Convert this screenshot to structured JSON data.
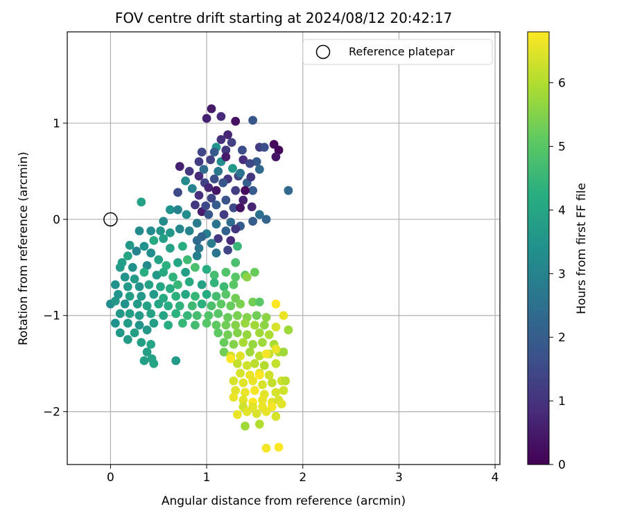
{
  "chart_data": {
    "type": "scatter",
    "title": "FOV centre drift starting at 2024/08/12 20:42:17",
    "xlabel": "Angular distance from reference (arcmin)",
    "ylabel": "Rotation from reference (arcmin)",
    "xlim": [
      -0.45,
      4.05
    ],
    "ylim": [
      -2.55,
      1.95
    ],
    "xticks": [
      0,
      1,
      2,
      3,
      4
    ],
    "xtick_labels": [
      "0",
      "1",
      "2",
      "3",
      "4"
    ],
    "yticks": [
      1,
      0,
      -1,
      -2
    ],
    "ytick_labels": [
      "1",
      "0",
      "−1",
      "−2"
    ],
    "grid": true,
    "legend": {
      "position": "top-right",
      "entries": [
        "Reference platepar"
      ]
    },
    "reference_point": {
      "label": "Reference platepar",
      "x": 0,
      "y": 0
    },
    "colorbar": {
      "label": "Hours from first FF file",
      "range": [
        0,
        6.8
      ],
      "ticks": [
        0,
        1,
        2,
        3,
        4,
        5,
        6
      ],
      "tick_labels": [
        "0",
        "1",
        "2",
        "3",
        "4",
        "5",
        "6"
      ],
      "colormap": "viridis"
    },
    "points": [
      [
        1.05,
        1.15,
        0.5
      ],
      [
        1.15,
        1.07,
        0.8
      ],
      [
        1.0,
        1.05,
        0.6
      ],
      [
        1.3,
        1.02,
        0.3
      ],
      [
        1.48,
        1.03,
        1.8
      ],
      [
        1.22,
        0.88,
        0.7
      ],
      [
        1.15,
        0.83,
        0.9
      ],
      [
        1.55,
        0.75,
        1.2
      ],
      [
        1.75,
        0.72,
        0.1
      ],
      [
        1.7,
        0.78,
        0.2
      ],
      [
        1.72,
        0.65,
        0.4
      ],
      [
        1.1,
        0.75,
        3.5
      ],
      [
        1.26,
        0.8,
        1.3
      ],
      [
        1.37,
        0.72,
        1.6
      ],
      [
        1.2,
        0.72,
        1.1
      ],
      [
        0.95,
        0.7,
        1.4
      ],
      [
        1.04,
        0.62,
        1.3
      ],
      [
        0.92,
        0.6,
        1.2
      ],
      [
        1.15,
        0.6,
        3.3
      ],
      [
        1.38,
        0.62,
        0.9
      ],
      [
        1.52,
        0.6,
        1.9
      ],
      [
        1.45,
        0.58,
        1.5
      ],
      [
        0.72,
        0.55,
        0.6
      ],
      [
        0.82,
        0.5,
        1.1
      ],
      [
        1.12,
        0.5,
        2.7
      ],
      [
        1.27,
        0.53,
        3.6
      ],
      [
        1.33,
        0.45,
        1.4
      ],
      [
        1.55,
        0.52,
        2.3
      ],
      [
        0.92,
        0.45,
        0.8
      ],
      [
        1.08,
        0.42,
        1.6
      ],
      [
        1.22,
        0.42,
        1.0
      ],
      [
        1.42,
        0.38,
        2.1
      ],
      [
        0.78,
        0.4,
        3.2
      ],
      [
        0.98,
        0.38,
        1.3
      ],
      [
        1.17,
        0.38,
        1.8
      ],
      [
        0.85,
        0.32,
        3.0
      ],
      [
        1.02,
        0.33,
        0.7
      ],
      [
        1.3,
        0.3,
        1.2
      ],
      [
        1.48,
        0.3,
        1.9
      ],
      [
        1.85,
        0.3,
        2.3
      ],
      [
        0.7,
        0.28,
        1.5
      ],
      [
        0.92,
        0.25,
        0.9
      ],
      [
        1.05,
        0.22,
        1.4
      ],
      [
        1.2,
        0.2,
        1.7
      ],
      [
        1.38,
        0.2,
        0.6
      ],
      [
        0.88,
        0.15,
        1.1
      ],
      [
        1.1,
        0.15,
        2.0
      ],
      [
        1.28,
        0.12,
        1.5
      ],
      [
        0.95,
        0.08,
        0.5
      ],
      [
        1.35,
        0.12,
        0.3
      ],
      [
        0.62,
        0.1,
        3.4
      ],
      [
        0.7,
        0.1,
        3.0
      ],
      [
        1.18,
        0.05,
        1.2
      ],
      [
        1.02,
        0.05,
        1.8
      ],
      [
        1.55,
        0.05,
        2.5
      ],
      [
        1.62,
        0.0,
        2.2
      ],
      [
        0.79,
        0.05,
        3.3
      ],
      [
        1.48,
        -0.02,
        2.0
      ],
      [
        1.25,
        -0.03,
        2.4
      ],
      [
        1.1,
        -0.05,
        2.6
      ],
      [
        0.55,
        -0.02,
        3.2
      ],
      [
        0.9,
        -0.04,
        2.8
      ],
      [
        1.35,
        -0.07,
        1.9
      ],
      [
        0.72,
        -0.1,
        3.1
      ],
      [
        1.2,
        -0.12,
        2.1
      ],
      [
        1.0,
        -0.15,
        2.9
      ],
      [
        0.62,
        -0.14,
        3.6
      ],
      [
        0.82,
        -0.12,
        3.0
      ],
      [
        0.95,
        -0.18,
        2.2
      ],
      [
        1.12,
        -0.2,
        1.1
      ],
      [
        1.25,
        -0.22,
        0.8
      ],
      [
        0.32,
        0.18,
        3.9
      ],
      [
        0.42,
        -0.12,
        3.3
      ],
      [
        0.52,
        -0.12,
        3.5
      ],
      [
        0.3,
        -0.12,
        3.2
      ],
      [
        0.45,
        -0.22,
        4.1
      ],
      [
        0.55,
        -0.2,
        3.8
      ],
      [
        0.35,
        -0.28,
        3.4
      ],
      [
        0.2,
        -0.27,
        3.6
      ],
      [
        0.27,
        -0.33,
        3.0
      ],
      [
        0.62,
        -0.3,
        3.9
      ],
      [
        0.75,
        -0.28,
        4.2
      ],
      [
        0.92,
        -0.3,
        2.7
      ],
      [
        1.1,
        -0.35,
        2.6
      ],
      [
        1.22,
        -0.32,
        1.4
      ],
      [
        1.32,
        -0.28,
        4.5
      ],
      [
        0.42,
        -0.35,
        3.3
      ],
      [
        0.18,
        -0.38,
        4.0
      ],
      [
        0.12,
        -0.45,
        3.8
      ],
      [
        0.23,
        -0.5,
        3.4
      ],
      [
        0.38,
        -0.48,
        3.2
      ],
      [
        0.5,
        -0.42,
        3.9
      ],
      [
        0.58,
        -0.48,
        4.3
      ],
      [
        0.7,
        -0.45,
        4.0
      ],
      [
        0.8,
        -0.42,
        4.6
      ],
      [
        0.9,
        -0.38,
        2.9
      ],
      [
        0.1,
        -0.5,
        3.7
      ],
      [
        0.15,
        -0.6,
        3.5
      ],
      [
        0.25,
        -0.62,
        3.7
      ],
      [
        0.35,
        -0.55,
        4.2
      ],
      [
        0.48,
        -0.58,
        3.6
      ],
      [
        0.55,
        -0.55,
        4.1
      ],
      [
        0.65,
        -0.6,
        4.4
      ],
      [
        0.78,
        -0.55,
        3.8
      ],
      [
        0.88,
        -0.5,
        4.8
      ],
      [
        1.0,
        -0.52,
        4.2
      ],
      [
        1.08,
        -0.58,
        4.7
      ],
      [
        1.2,
        -0.55,
        4.9
      ],
      [
        1.3,
        -0.6,
        5.0
      ],
      [
        1.4,
        -0.58,
        5.1
      ],
      [
        1.5,
        -0.55,
        5.2
      ],
      [
        1.42,
        -0.6,
        5.6
      ],
      [
        0.05,
        -0.68,
        3.4
      ],
      [
        0.18,
        -0.7,
        3.7
      ],
      [
        0.3,
        -0.7,
        3.5
      ],
      [
        0.4,
        -0.68,
        3.9
      ],
      [
        0.52,
        -0.7,
        4.0
      ],
      [
        0.62,
        -0.72,
        4.2
      ],
      [
        0.7,
        -0.68,
        4.5
      ],
      [
        0.82,
        -0.65,
        4.1
      ],
      [
        0.95,
        -0.68,
        3.9
      ],
      [
        1.08,
        -0.66,
        4.4
      ],
      [
        1.18,
        -0.7,
        4.6
      ],
      [
        1.28,
        -0.68,
        5.0
      ],
      [
        0.08,
        -0.78,
        3.5
      ],
      [
        0.2,
        -0.8,
        3.8
      ],
      [
        0.32,
        -0.8,
        3.6
      ],
      [
        0.45,
        -0.78,
        3.7
      ],
      [
        0.55,
        -0.82,
        4.1
      ],
      [
        0.68,
        -0.8,
        4.3
      ],
      [
        0.78,
        -0.78,
        4.0
      ],
      [
        0.88,
        -0.8,
        4.5
      ],
      [
        1.0,
        -0.78,
        4.2
      ],
      [
        1.1,
        -0.8,
        4.7
      ],
      [
        1.2,
        -0.78,
        5.0
      ],
      [
        1.3,
        -0.82,
        5.3
      ],
      [
        0.0,
        -0.88,
        3.3
      ],
      [
        0.05,
        -0.85,
        3.6
      ],
      [
        0.15,
        -0.88,
        3.4
      ],
      [
        0.28,
        -0.88,
        3.7
      ],
      [
        0.38,
        -0.9,
        3.9
      ],
      [
        0.5,
        -0.88,
        4.0
      ],
      [
        0.6,
        -0.9,
        4.2
      ],
      [
        0.72,
        -0.9,
        4.4
      ],
      [
        0.85,
        -0.9,
        4.6
      ],
      [
        0.95,
        -0.88,
        4.3
      ],
      [
        1.05,
        -0.9,
        4.8
      ],
      [
        1.15,
        -0.88,
        5.1
      ],
      [
        1.25,
        -0.9,
        5.2
      ],
      [
        1.35,
        -0.88,
        5.4
      ],
      [
        1.48,
        -0.86,
        5.3
      ],
      [
        1.55,
        -0.86,
        5.0
      ],
      [
        1.72,
        -0.88,
        6.8
      ],
      [
        0.1,
        -0.98,
        3.6
      ],
      [
        0.2,
        -0.98,
        3.8
      ],
      [
        0.3,
        -1.0,
        3.7
      ],
      [
        0.42,
        -0.98,
        3.9
      ],
      [
        0.55,
        -1.0,
        4.0
      ],
      [
        0.68,
        -0.98,
        4.3
      ],
      [
        0.8,
        -1.0,
        4.5
      ],
      [
        0.9,
        -1.0,
        4.7
      ],
      [
        1.02,
        -1.0,
        4.9
      ],
      [
        1.12,
        -0.98,
        5.0
      ],
      [
        1.22,
        -1.02,
        5.2
      ],
      [
        1.32,
        -1.0,
        5.4
      ],
      [
        1.42,
        -1.02,
        5.5
      ],
      [
        1.52,
        -1.0,
        5.3
      ],
      [
        1.62,
        -1.02,
        5.6
      ],
      [
        1.8,
        -1.0,
        6.6
      ],
      [
        0.05,
        -1.08,
        3.4
      ],
      [
        0.18,
        -1.08,
        3.7
      ],
      [
        0.3,
        -1.1,
        3.5
      ],
      [
        0.45,
        -1.08,
        3.8
      ],
      [
        0.6,
        -1.1,
        4.2
      ],
      [
        0.75,
        -1.08,
        4.5
      ],
      [
        0.88,
        -1.1,
        4.7
      ],
      [
        1.0,
        -1.08,
        5.0
      ],
      [
        1.1,
        -1.1,
        5.1
      ],
      [
        1.2,
        -1.1,
        5.3
      ],
      [
        1.3,
        -1.1,
        5.5
      ],
      [
        1.4,
        -1.08,
        5.7
      ],
      [
        1.5,
        -1.1,
        5.8
      ],
      [
        1.6,
        -1.1,
        5.6
      ],
      [
        1.72,
        -1.12,
        6.4
      ],
      [
        0.1,
        -1.18,
        3.6
      ],
      [
        0.25,
        -1.18,
        3.8
      ],
      [
        0.38,
        -1.15,
        3.6
      ],
      [
        1.12,
        -1.18,
        5.1
      ],
      [
        1.22,
        -1.2,
        5.3
      ],
      [
        1.32,
        -1.18,
        5.5
      ],
      [
        1.42,
        -1.2,
        5.7
      ],
      [
        1.55,
        -1.18,
        5.8
      ],
      [
        1.65,
        -1.2,
        5.9
      ],
      [
        1.85,
        -1.15,
        5.8
      ],
      [
        0.18,
        -1.25,
        3.7
      ],
      [
        0.32,
        -1.28,
        3.8
      ],
      [
        0.42,
        -1.3,
        4.0
      ],
      [
        1.18,
        -1.28,
        5.2
      ],
      [
        1.28,
        -1.3,
        5.5
      ],
      [
        1.38,
        -1.28,
        5.9
      ],
      [
        1.48,
        -1.3,
        5.7
      ],
      [
        1.58,
        -1.28,
        5.8
      ],
      [
        1.7,
        -1.3,
        5.9
      ],
      [
        0.38,
        -1.38,
        3.8
      ],
      [
        0.43,
        -1.45,
        3.9
      ],
      [
        1.18,
        -1.38,
        5.3
      ],
      [
        1.25,
        -1.42,
        6.3
      ],
      [
        1.35,
        -1.42,
        6.5
      ],
      [
        1.45,
        -1.38,
        5.8
      ],
      [
        1.55,
        -1.42,
        6.1
      ],
      [
        1.65,
        -1.4,
        6.2
      ],
      [
        1.75,
        -1.38,
        6.0
      ],
      [
        1.8,
        -1.38,
        5.8
      ],
      [
        1.72,
        -1.35,
        6.6
      ],
      [
        1.62,
        -1.4,
        6.7
      ],
      [
        1.25,
        -1.45,
        6.8
      ],
      [
        0.35,
        -1.47,
        3.8
      ],
      [
        0.45,
        -1.5,
        4.0
      ],
      [
        0.68,
        -1.47,
        3.7
      ],
      [
        1.32,
        -1.5,
        6.2
      ],
      [
        1.42,
        -1.52,
        6.3
      ],
      [
        1.5,
        -1.5,
        6.1
      ],
      [
        1.6,
        -1.52,
        6.0
      ],
      [
        1.72,
        -1.5,
        6.2
      ],
      [
        1.35,
        -1.6,
        6.4
      ],
      [
        1.45,
        -1.62,
        6.6
      ],
      [
        1.55,
        -1.6,
        6.5
      ],
      [
        1.65,
        -1.62,
        6.3
      ],
      [
        1.55,
        -1.62,
        6.8
      ],
      [
        1.28,
        -1.68,
        6.4
      ],
      [
        1.38,
        -1.7,
        6.5
      ],
      [
        1.48,
        -1.68,
        6.6
      ],
      [
        1.58,
        -1.72,
        6.4
      ],
      [
        1.68,
        -1.7,
        6.2
      ],
      [
        1.78,
        -1.68,
        6.3
      ],
      [
        1.82,
        -1.68,
        6.1
      ],
      [
        1.3,
        -1.78,
        6.5
      ],
      [
        1.4,
        -1.8,
        6.6
      ],
      [
        1.5,
        -1.78,
        6.7
      ],
      [
        1.6,
        -1.82,
        6.5
      ],
      [
        1.72,
        -1.8,
        6.4
      ],
      [
        1.8,
        -1.78,
        6.3
      ],
      [
        1.28,
        -1.85,
        6.6
      ],
      [
        1.38,
        -1.88,
        6.5
      ],
      [
        1.48,
        -1.9,
        6.8
      ],
      [
        1.58,
        -1.88,
        6.6
      ],
      [
        1.68,
        -1.9,
        6.5
      ],
      [
        1.75,
        -1.88,
        6.4
      ],
      [
        1.38,
        -1.95,
        6.3
      ],
      [
        1.48,
        -1.95,
        6.5
      ],
      [
        1.58,
        -1.95,
        6.6
      ],
      [
        1.68,
        -1.95,
        6.7
      ],
      [
        1.78,
        -1.92,
        6.5
      ],
      [
        1.32,
        -2.03,
        6.6
      ],
      [
        1.42,
        -2.0,
        6.5
      ],
      [
        1.52,
        -2.02,
        6.4
      ],
      [
        1.62,
        -2.0,
        6.6
      ],
      [
        1.72,
        -2.05,
        6.4
      ],
      [
        1.4,
        -2.15,
        5.8
      ],
      [
        1.55,
        -2.13,
        6.0
      ],
      [
        1.62,
        -2.38,
        6.7
      ],
      [
        1.75,
        -2.37,
        6.8
      ],
      [
        1.3,
        -0.1,
        1.0
      ],
      [
        1.6,
        0.75,
        1.6
      ],
      [
        1.2,
        0.65,
        0.5
      ],
      [
        1.08,
        0.7,
        1.9
      ],
      [
        1.4,
        0.3,
        0.2
      ],
      [
        0.97,
        0.52,
        2.4
      ],
      [
        1.1,
        0.3,
        0.4
      ],
      [
        1.35,
        0.48,
        2.6
      ],
      [
        1.47,
        0.13,
        0.7
      ],
      [
        1.05,
        -0.25,
        2.8
      ],
      [
        0.9,
        -0.22,
        2.3
      ],
      [
        1.3,
        -0.45,
        4.8
      ],
      [
        1.46,
        0.44,
        1.1
      ],
      [
        0.99,
        0.14,
        1.5
      ]
    ]
  }
}
